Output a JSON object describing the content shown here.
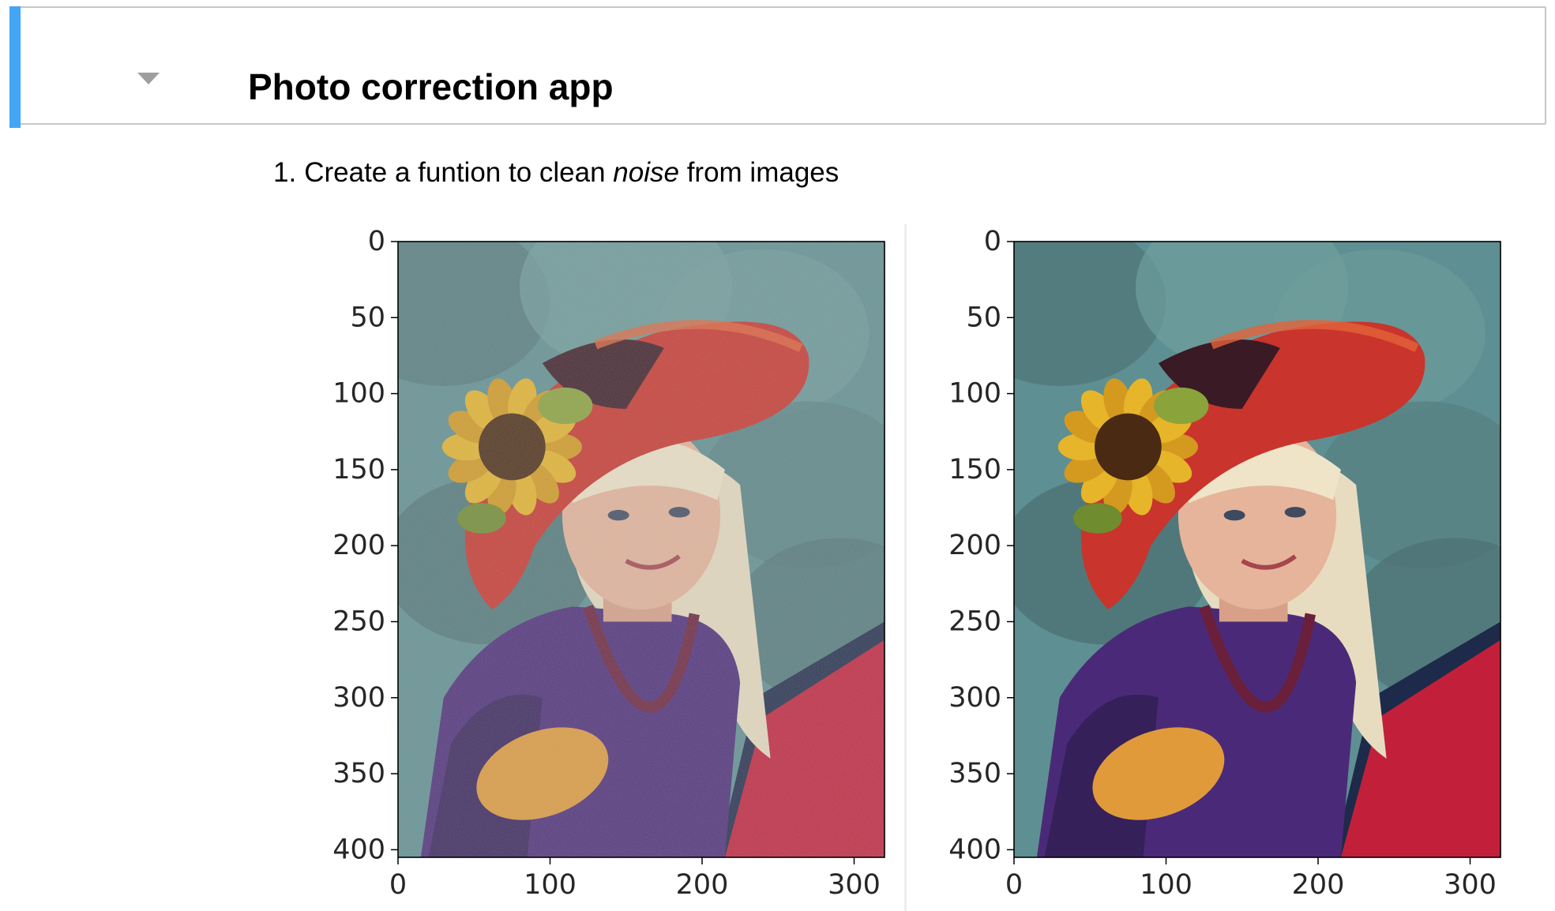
{
  "header": {
    "title": "Photo correction app"
  },
  "list": {
    "items": [
      {
        "number": "1.",
        "before": "Create a funtion to clean ",
        "emph": "noise",
        "after": " from images"
      }
    ]
  },
  "icons": {
    "collapse": "chevron-down-icon"
  },
  "colors": {
    "selection_accent": "#42a5f5",
    "cell_border": "#c7c7c7",
    "toggle": "#9e9e9e"
  },
  "figures": [
    {
      "name": "noisy-image",
      "image_width": 320,
      "image_height": 405,
      "noise": true,
      "x_ticks": [
        0,
        100,
        200,
        300
      ],
      "y_ticks": [
        0,
        50,
        100,
        150,
        200,
        250,
        300,
        350,
        400
      ]
    },
    {
      "name": "denoised-image",
      "image_width": 320,
      "image_height": 405,
      "noise": false,
      "x_ticks": [
        0,
        100,
        200,
        300
      ],
      "y_ticks": [
        0,
        50,
        100,
        150,
        200,
        250,
        300,
        350,
        400
      ]
    }
  ]
}
